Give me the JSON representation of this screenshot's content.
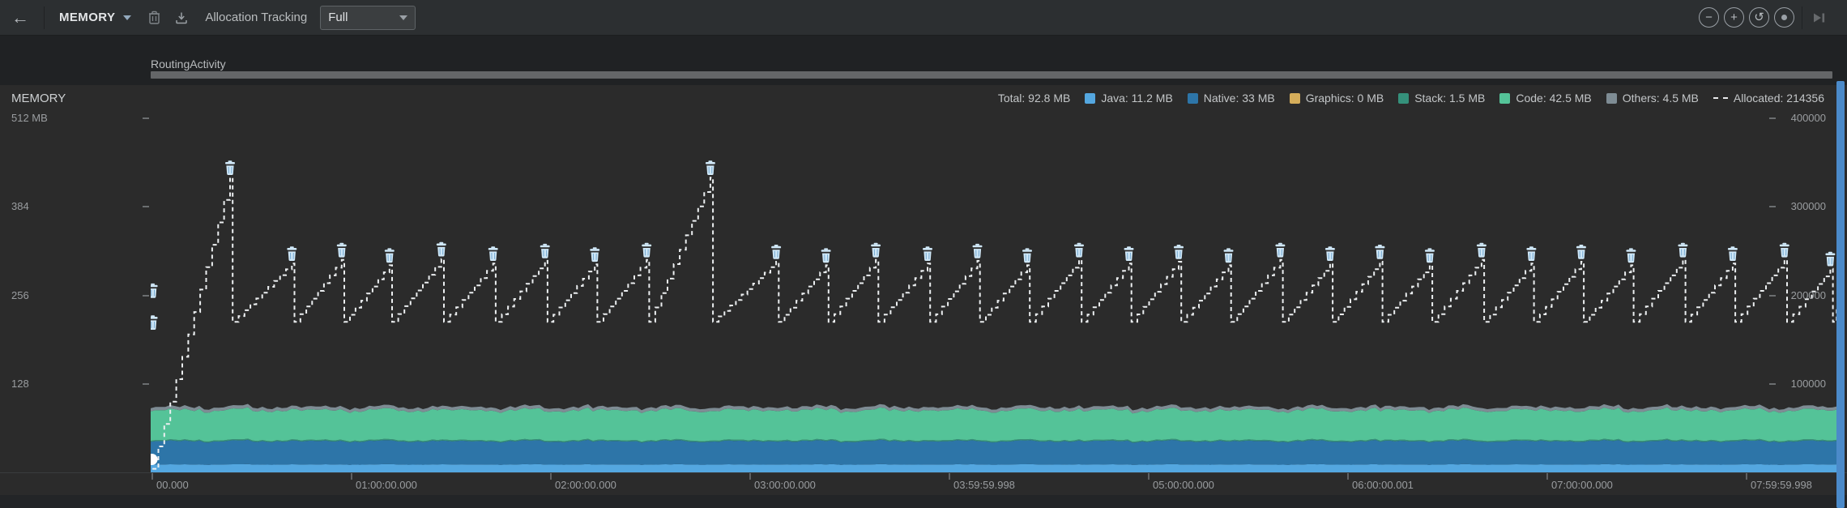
{
  "toolbar": {
    "back_icon": "←",
    "profiler_dropdown": {
      "label": "MEMORY"
    },
    "allocation_tracking_label": "Allocation Tracking",
    "tracking_mode_dropdown": {
      "value": "Full"
    },
    "zoom_out_glyph": "−",
    "zoom_in_glyph": "+",
    "reset_zoom_glyph": "↺"
  },
  "activity": {
    "name": "RoutingActivity"
  },
  "chart_header": {
    "title": "MEMORY"
  },
  "legend": [
    {
      "key": "total",
      "label": "Total: 92.8 MB",
      "swatch": "none"
    },
    {
      "key": "java",
      "label": "Java: 11.2 MB",
      "swatch": "square",
      "color": "#54a7e0"
    },
    {
      "key": "native",
      "label": "Native: 33 MB",
      "swatch": "square",
      "color": "#2d75a8"
    },
    {
      "key": "graphics",
      "label": "Graphics: 0 MB",
      "swatch": "square",
      "color": "#d5ad5a"
    },
    {
      "key": "stack",
      "label": "Stack: 1.5 MB",
      "swatch": "square",
      "color": "#35917b"
    },
    {
      "key": "code",
      "label": "Code: 42.5 MB",
      "swatch": "square",
      "color": "#54c398"
    },
    {
      "key": "others",
      "label": "Others: 4.5 MB",
      "swatch": "square",
      "color": "#7e8c94"
    },
    {
      "key": "allocated",
      "label": "Allocated: 214356",
      "swatch": "dash"
    }
  ],
  "chart_data": {
    "type": "area+line",
    "title": "MEMORY",
    "left_axis": {
      "unit": "MB",
      "tick_values": [
        512,
        384,
        256,
        128
      ],
      "tick_labels": [
        "512 MB",
        "384",
        "256",
        "128"
      ],
      "range": [
        0,
        560
      ]
    },
    "right_axis": {
      "tick_values": [
        400000,
        300000,
        200000,
        100000
      ],
      "tick_labels": [
        "400000",
        "300000",
        "200000",
        "100000"
      ],
      "range": [
        0,
        438000
      ]
    },
    "x_axis": {
      "tick_labels": [
        "00.000",
        "01:00:00.000",
        "02:00:00.000",
        "03:00:00.000",
        "03:59:59.998",
        "05:00:00.000",
        "06:00:00.001",
        "07:00:00.000",
        "07:59:59.998"
      ],
      "tick_hours": [
        0,
        1,
        2,
        3,
        4,
        5,
        6,
        7,
        8
      ]
    },
    "total_mb": 92.8,
    "memory_layers": [
      {
        "name": "Java",
        "mb": 11.2,
        "color": "#54a7e0"
      },
      {
        "name": "Native",
        "mb": 33,
        "color": "#2d75a8"
      },
      {
        "name": "Graphics",
        "mb": 0,
        "color": "#d5ad5a"
      },
      {
        "name": "Stack",
        "mb": 1.5,
        "color": "#35917b"
      },
      {
        "name": "Code",
        "mb": 42.5,
        "color": "#54c398"
      },
      {
        "name": "Others",
        "mb": 4.5,
        "color": "#7e8c94"
      }
    ],
    "allocated": {
      "current": 214356,
      "valley": 170000,
      "start": {
        "t": -0.02,
        "v": 4000
      },
      "peaks": [
        [
          0.37,
          333000
        ],
        [
          0.68,
          236000
        ],
        [
          0.93,
          240000
        ],
        [
          1.17,
          234000
        ],
        [
          1.43,
          241000
        ],
        [
          1.69,
          236000
        ],
        [
          1.95,
          239000
        ],
        [
          2.2,
          235000
        ],
        [
          2.46,
          240000
        ],
        [
          2.78,
          333000
        ],
        [
          3.11,
          238000
        ],
        [
          3.36,
          234000
        ],
        [
          3.61,
          240000
        ],
        [
          3.87,
          236000
        ],
        [
          4.12,
          239000
        ],
        [
          4.37,
          234000
        ],
        [
          4.63,
          240000
        ],
        [
          4.88,
          236000
        ],
        [
          5.13,
          238000
        ],
        [
          5.38,
          234000
        ],
        [
          5.64,
          240000
        ],
        [
          5.89,
          236000
        ],
        [
          6.14,
          238000
        ],
        [
          6.39,
          234000
        ],
        [
          6.65,
          240000
        ],
        [
          6.9,
          236000
        ],
        [
          7.15,
          238000
        ],
        [
          7.4,
          234000
        ],
        [
          7.66,
          240000
        ],
        [
          7.91,
          236000
        ],
        [
          8.17,
          240000
        ],
        [
          8.4,
          230000
        ]
      ],
      "end": {
        "t": 8.47,
        "v": 214356
      },
      "start_gc_icons": [
        {
          "t": -0.018,
          "v": 196000
        },
        {
          "t": -0.018,
          "v": 160000
        }
      ]
    }
  }
}
